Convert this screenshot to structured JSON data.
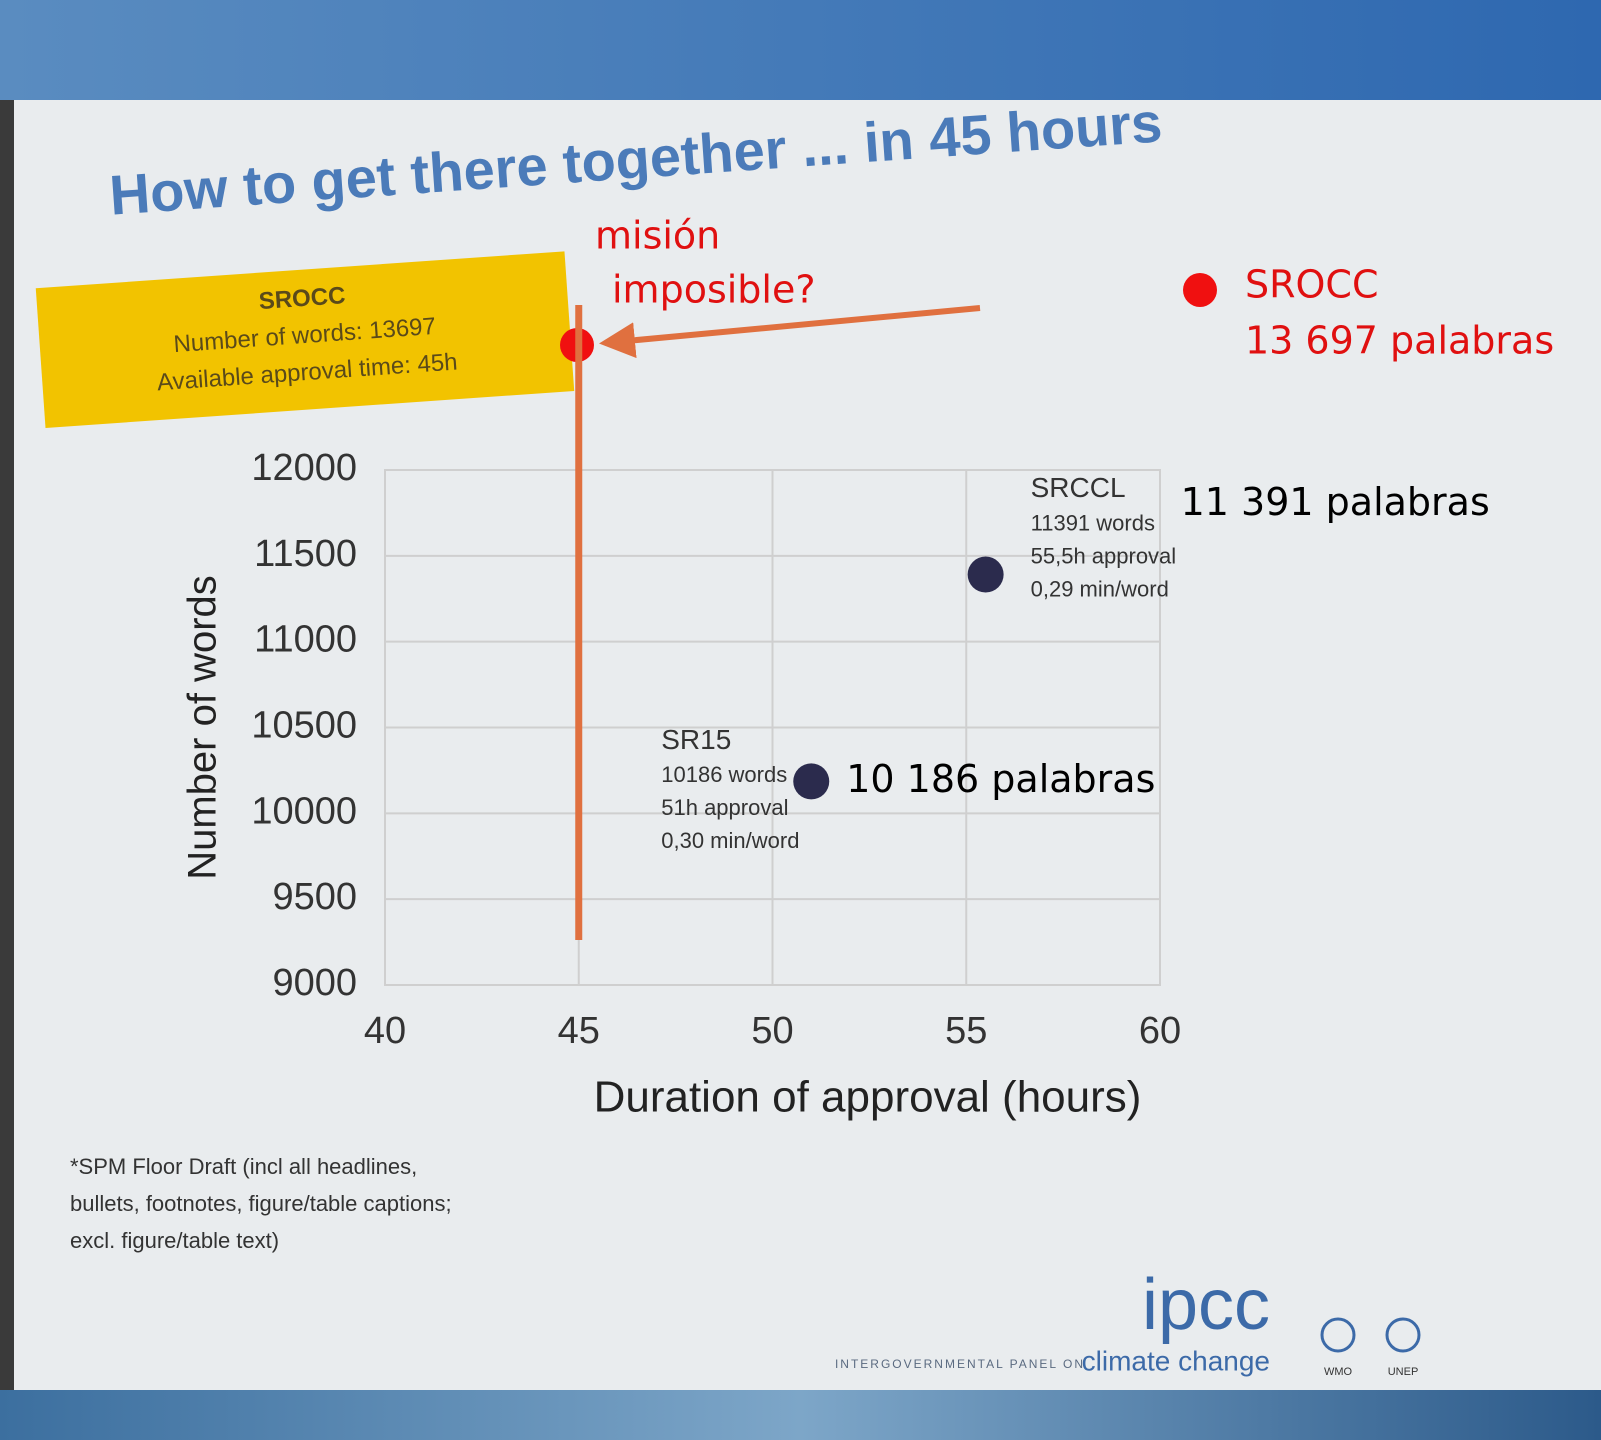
{
  "chart_data": {
    "type": "scatter",
    "title": "How to get there together ... in 45 hours",
    "xlabel": "Duration of approval (hours)",
    "ylabel": "Number of words",
    "xlim": [
      40,
      60
    ],
    "xticks": [
      40,
      45,
      50,
      55,
      60
    ],
    "ylim": [
      9000,
      12000
    ],
    "yticks": [
      9000,
      9500,
      10000,
      10500,
      11000,
      11500,
      12000
    ],
    "grid": true,
    "color": "#2b2b4d",
    "series": [
      {
        "name": "SR15",
        "x": [
          51
        ],
        "values": [
          10186
        ],
        "labels": [
          "10186 words",
          "51h approval",
          "0,30 min/word"
        ],
        "note": "10 186 palabras"
      },
      {
        "name": "SRCCL",
        "x": [
          55.5
        ],
        "values": [
          11391
        ],
        "labels": [
          "11391 words",
          "55,5h approval",
          "0,29 min/word"
        ],
        "note": "11 391 palabras"
      }
    ],
    "reference_line": {
      "x": 45,
      "color": "#e0703f"
    }
  },
  "callout": {
    "title": "SROCC",
    "lines": [
      "Number of words: 13697",
      "Available approval time: 45h"
    ]
  },
  "annotation": {
    "lines": [
      "misión",
      "imposible?"
    ]
  },
  "legend_note": {
    "lines": [
      "SROCC",
      "13 697 palabras"
    ]
  },
  "footnote": {
    "lines": [
      "*SPM Floor Draft (incl all headlines,",
      "bullets, footnotes, figure/table captions;",
      "excl. figure/table text)"
    ]
  },
  "logo": {
    "name": "ipcc",
    "line1": "INTERGOVERNMENTAL PANEL ON",
    "line2": "climate change",
    "partners": [
      "WMO",
      "UNEP"
    ]
  }
}
